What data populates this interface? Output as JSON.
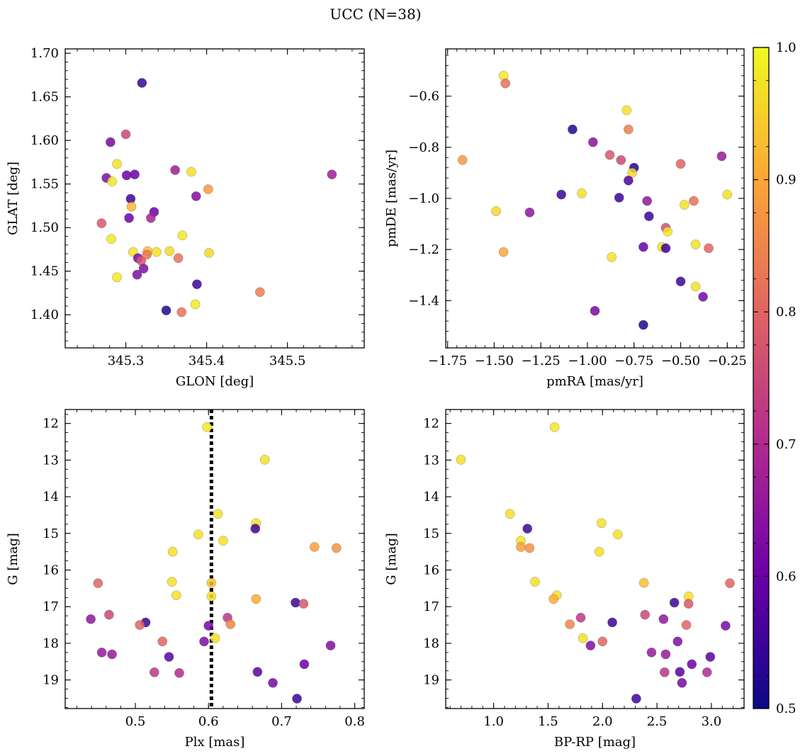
{
  "figure": {
    "title": "UCC (N=38)"
  },
  "colorbar": {
    "range": [
      0.5,
      1.0
    ],
    "ticks": [
      "0.5",
      "0.6",
      "0.7",
      "0.8",
      "0.9",
      "1.0"
    ],
    "colormap": [
      "#0d0887",
      "#6a00a8",
      "#b12a90",
      "#e16462",
      "#fca636",
      "#f0f921"
    ]
  },
  "chart_data": [
    {
      "type": "scatter",
      "name": "glon-glat",
      "xlabel": "GLON [deg]",
      "ylabel": "GLAT [deg]",
      "xlim": [
        345.225,
        345.595
      ],
      "ylim": [
        1.362,
        1.705
      ],
      "invert_y": false,
      "xticks": [
        345.3,
        345.4,
        345.5
      ],
      "xtick_labels": [
        "345.3",
        "345.4",
        "345.5"
      ],
      "yticks": [
        1.4,
        1.45,
        1.5,
        1.55,
        1.6,
        1.65,
        1.7
      ],
      "ytick_labels": [
        "1.40",
        "1.45",
        "1.50",
        "1.55",
        "1.60",
        "1.65",
        "1.70"
      ],
      "points": [
        [
          345.32,
          1.666,
          0.55
        ],
        [
          345.3,
          1.607,
          0.75
        ],
        [
          345.281,
          1.598,
          0.62
        ],
        [
          345.289,
          1.573,
          0.97
        ],
        [
          345.276,
          1.557,
          0.63
        ],
        [
          345.283,
          1.553,
          0.98
        ],
        [
          345.301,
          1.56,
          0.6
        ],
        [
          345.311,
          1.561,
          0.6
        ],
        [
          345.361,
          1.566,
          0.67
        ],
        [
          345.381,
          1.564,
          0.97
        ],
        [
          345.402,
          1.544,
          0.88
        ],
        [
          345.555,
          1.561,
          0.67
        ],
        [
          345.306,
          1.533,
          0.55
        ],
        [
          345.307,
          1.524,
          0.92
        ],
        [
          345.335,
          1.518,
          0.6
        ],
        [
          345.387,
          1.536,
          0.63
        ],
        [
          345.304,
          1.511,
          0.6
        ],
        [
          345.331,
          1.511,
          0.68
        ],
        [
          345.27,
          1.505,
          0.78
        ],
        [
          345.282,
          1.487,
          0.98
        ],
        [
          345.37,
          1.491,
          0.98
        ],
        [
          345.309,
          1.472,
          0.97
        ],
        [
          345.327,
          1.473,
          0.93
        ],
        [
          345.338,
          1.472,
          0.97
        ],
        [
          345.354,
          1.473,
          0.96
        ],
        [
          345.403,
          1.471,
          0.96
        ],
        [
          345.315,
          1.465,
          0.62
        ],
        [
          345.319,
          1.462,
          0.77
        ],
        [
          345.326,
          1.469,
          0.83
        ],
        [
          345.365,
          1.465,
          0.82
        ],
        [
          345.322,
          1.453,
          0.63
        ],
        [
          345.314,
          1.446,
          0.63
        ],
        [
          345.289,
          1.443,
          0.98
        ],
        [
          345.388,
          1.435,
          0.55
        ],
        [
          345.466,
          1.426,
          0.84
        ],
        [
          345.386,
          1.412,
          0.98
        ],
        [
          345.35,
          1.405,
          0.52
        ],
        [
          345.369,
          1.403,
          0.82
        ]
      ]
    },
    {
      "type": "scatter",
      "name": "pmra-pmde",
      "xlabel": "pmRA [mas/yr]",
      "ylabel": "pmDE [mas/yr]",
      "xlim": [
        -1.76,
        -0.16
      ],
      "ylim": [
        -1.585,
        -0.415
      ],
      "invert_y": false,
      "xticks": [
        -1.75,
        -1.5,
        -1.25,
        -1.0,
        -0.75,
        -0.5,
        -0.25
      ],
      "xtick_labels": [
        "−1.75",
        "−1.50",
        "−1.25",
        "−1.00",
        "−0.75",
        "−0.50",
        "−0.25"
      ],
      "yticks": [
        -1.4,
        -1.2,
        -1.0,
        -0.8,
        -0.6
      ],
      "ytick_labels": [
        "−1.4",
        "−1.2",
        "−1.0",
        "−0.8",
        "−0.6"
      ],
      "points": [
        [
          -1.45,
          -0.52,
          0.98
        ],
        [
          -1.44,
          -0.55,
          0.82
        ],
        [
          -0.79,
          -0.655,
          0.97
        ],
        [
          -1.08,
          -0.73,
          0.52
        ],
        [
          -0.78,
          -0.73,
          0.84
        ],
        [
          -0.97,
          -0.78,
          0.64
        ],
        [
          -0.88,
          -0.83,
          0.78
        ],
        [
          -0.82,
          -0.85,
          0.75
        ],
        [
          -0.28,
          -0.835,
          0.66
        ],
        [
          -0.5,
          -0.865,
          0.8
        ],
        [
          -1.67,
          -0.85,
          0.88
        ],
        [
          -0.75,
          -0.88,
          0.52
        ],
        [
          -0.76,
          -0.9,
          0.96
        ],
        [
          -0.78,
          -0.93,
          0.57
        ],
        [
          -1.14,
          -0.985,
          0.55
        ],
        [
          -1.03,
          -0.98,
          0.97
        ],
        [
          -0.83,
          -0.997,
          0.55
        ],
        [
          -0.68,
          -1.01,
          0.65
        ],
        [
          -0.43,
          -1.01,
          0.82
        ],
        [
          -0.25,
          -0.985,
          0.97
        ],
        [
          -0.48,
          -1.025,
          0.97
        ],
        [
          -1.49,
          -1.05,
          0.96
        ],
        [
          -1.31,
          -1.055,
          0.65
        ],
        [
          -0.67,
          -1.07,
          0.55
        ],
        [
          -0.58,
          -1.115,
          0.76
        ],
        [
          -0.57,
          -1.13,
          0.98
        ],
        [
          -0.42,
          -1.18,
          0.97
        ],
        [
          -0.7,
          -1.19,
          0.6
        ],
        [
          -0.6,
          -1.19,
          0.98
        ],
        [
          -0.58,
          -1.195,
          0.55
        ],
        [
          -0.35,
          -1.195,
          0.8
        ],
        [
          -1.45,
          -1.21,
          0.9
        ],
        [
          -0.87,
          -1.23,
          0.97
        ],
        [
          -0.5,
          -1.325,
          0.55
        ],
        [
          -0.42,
          -1.345,
          0.97
        ],
        [
          -0.38,
          -1.385,
          0.62
        ],
        [
          -0.96,
          -1.44,
          0.62
        ],
        [
          -0.7,
          -1.495,
          0.52
        ]
      ]
    },
    {
      "type": "scatter",
      "name": "plx-g",
      "xlabel": "Plx [mas]",
      "ylabel": "G [mag]",
      "xlim": [
        0.404,
        0.813
      ],
      "ylim": [
        11.62,
        19.78
      ],
      "invert_y": true,
      "vline": 0.604,
      "xticks": [
        0.5,
        0.6,
        0.7,
        0.8
      ],
      "xtick_labels": [
        "0.5",
        "0.6",
        "0.7",
        "0.8"
      ],
      "yticks": [
        12,
        13,
        14,
        15,
        16,
        17,
        18,
        19
      ],
      "ytick_labels": [
        "12",
        "13",
        "14",
        "15",
        "16",
        "17",
        "18",
        "19"
      ],
      "points": [
        [
          0.598,
          12.1,
          0.98
        ],
        [
          0.677,
          12.99,
          0.97
        ],
        [
          0.613,
          14.47,
          0.97
        ],
        [
          0.665,
          14.72,
          0.97
        ],
        [
          0.664,
          14.87,
          0.55
        ],
        [
          0.586,
          15.03,
          0.97
        ],
        [
          0.62,
          15.2,
          0.97
        ],
        [
          0.551,
          15.5,
          0.97
        ],
        [
          0.745,
          15.37,
          0.89
        ],
        [
          0.775,
          15.4,
          0.87
        ],
        [
          0.449,
          16.36,
          0.8
        ],
        [
          0.55,
          16.32,
          0.97
        ],
        [
          0.604,
          16.35,
          0.93
        ],
        [
          0.556,
          16.69,
          0.97
        ],
        [
          0.604,
          16.72,
          0.97
        ],
        [
          0.665,
          16.79,
          0.91
        ],
        [
          0.719,
          16.89,
          0.55
        ],
        [
          0.73,
          16.92,
          0.78
        ],
        [
          0.464,
          17.22,
          0.75
        ],
        [
          0.439,
          17.34,
          0.65
        ],
        [
          0.514,
          17.43,
          0.55
        ],
        [
          0.506,
          17.5,
          0.8
        ],
        [
          0.6,
          17.52,
          0.62
        ],
        [
          0.626,
          17.3,
          0.72
        ],
        [
          0.63,
          17.48,
          0.85
        ],
        [
          0.609,
          17.86,
          0.97
        ],
        [
          0.537,
          17.95,
          0.8
        ],
        [
          0.594,
          17.95,
          0.63
        ],
        [
          0.767,
          18.06,
          0.63
        ],
        [
          0.454,
          18.25,
          0.66
        ],
        [
          0.468,
          18.3,
          0.66
        ],
        [
          0.546,
          18.37,
          0.58
        ],
        [
          0.731,
          18.57,
          0.6
        ],
        [
          0.526,
          18.79,
          0.72
        ],
        [
          0.56,
          18.81,
          0.7
        ],
        [
          0.667,
          18.78,
          0.58
        ],
        [
          0.688,
          19.08,
          0.62
        ],
        [
          0.721,
          19.51,
          0.55
        ]
      ]
    },
    {
      "type": "scatter",
      "name": "bprp-g",
      "xlabel": "BP-RP [mag]",
      "ylabel": "G [mag]",
      "xlim": [
        0.56,
        3.3
      ],
      "ylim": [
        11.62,
        19.78
      ],
      "invert_y": true,
      "xticks": [
        1.0,
        1.5,
        2.0,
        2.5,
        3.0
      ],
      "xtick_labels": [
        "1.0",
        "1.5",
        "2.0",
        "2.5",
        "3.0"
      ],
      "yticks": [
        12,
        13,
        14,
        15,
        16,
        17,
        18,
        19
      ],
      "ytick_labels": [
        "12",
        "13",
        "14",
        "15",
        "16",
        "17",
        "18",
        "19"
      ],
      "points": [
        [
          1.56,
          12.1,
          0.98
        ],
        [
          0.7,
          12.99,
          0.97
        ],
        [
          1.15,
          14.47,
          0.97
        ],
        [
          1.31,
          14.87,
          0.55
        ],
        [
          1.99,
          14.72,
          0.97
        ],
        [
          2.14,
          15.03,
          0.97
        ],
        [
          1.25,
          15.2,
          0.97
        ],
        [
          1.25,
          15.37,
          0.89
        ],
        [
          1.33,
          15.4,
          0.87
        ],
        [
          1.97,
          15.5,
          0.97
        ],
        [
          1.38,
          16.32,
          0.97
        ],
        [
          2.38,
          16.35,
          0.93
        ],
        [
          3.17,
          16.36,
          0.8
        ],
        [
          1.58,
          16.69,
          0.97
        ],
        [
          1.55,
          16.79,
          0.91
        ],
        [
          2.79,
          16.72,
          0.97
        ],
        [
          2.66,
          16.89,
          0.55
        ],
        [
          2.79,
          16.92,
          0.78
        ],
        [
          1.8,
          17.3,
          0.72
        ],
        [
          2.39,
          17.22,
          0.75
        ],
        [
          2.56,
          17.34,
          0.65
        ],
        [
          1.7,
          17.48,
          0.85
        ],
        [
          2.09,
          17.43,
          0.55
        ],
        [
          2.77,
          17.5,
          0.8
        ],
        [
          3.13,
          17.52,
          0.62
        ],
        [
          1.82,
          17.86,
          0.97
        ],
        [
          2.0,
          17.95,
          0.8
        ],
        [
          2.69,
          17.95,
          0.63
        ],
        [
          1.89,
          18.06,
          0.63
        ],
        [
          2.45,
          18.25,
          0.66
        ],
        [
          2.58,
          18.3,
          0.66
        ],
        [
          2.99,
          18.37,
          0.58
        ],
        [
          2.82,
          18.57,
          0.6
        ],
        [
          2.57,
          18.79,
          0.72
        ],
        [
          2.71,
          18.78,
          0.58
        ],
        [
          2.96,
          18.79,
          0.7
        ],
        [
          2.73,
          19.08,
          0.62
        ],
        [
          2.31,
          19.51,
          0.55
        ]
      ]
    }
  ]
}
